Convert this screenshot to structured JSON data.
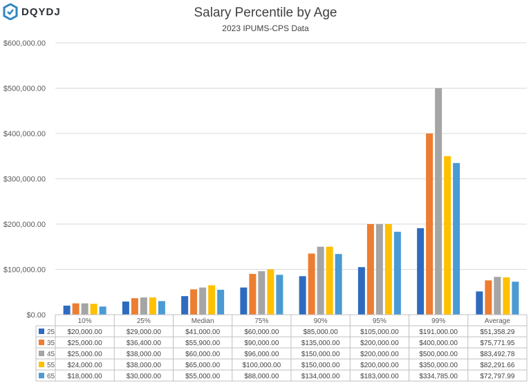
{
  "brand": {
    "logo_text": "DQYDJ",
    "logo_color": "#2e86c1"
  },
  "chart_data": {
    "type": "bar",
    "title": "Salary Percentile by Age",
    "subtitle": "2023 IPUMS-CPS Data",
    "xlabel": "",
    "ylabel": "",
    "ylim": [
      0,
      600000
    ],
    "yticks": [
      0,
      100000,
      200000,
      300000,
      400000,
      500000,
      600000
    ],
    "ytick_labels": [
      "$0.00",
      "$100,000.00",
      "$200,000.00",
      "$300,000.00",
      "$400,000.00",
      "$500,000.00",
      "$600,000.00"
    ],
    "grid": true,
    "legend": "data-table-below",
    "categories": [
      "10%",
      "25%",
      "Median",
      "75%",
      "90%",
      "95%",
      "99%",
      "Average"
    ],
    "series": [
      {
        "name": "25",
        "color": "#2e6bbf",
        "values": [
          20000,
          29000,
          41000,
          60000,
          85000,
          105000,
          191000,
          51358.29
        ],
        "labels": [
          "$20,000.00",
          "$29,000.00",
          "$41,000.00",
          "$60,000.00",
          "$85,000.00",
          "$105,000.00",
          "$191,000.00",
          "$51,358.29"
        ]
      },
      {
        "name": "35",
        "color": "#ed7d31",
        "values": [
          25000,
          36400,
          55900,
          90000,
          135000,
          200000,
          400000,
          75771.95
        ],
        "labels": [
          "$25,000.00",
          "$36,400.00",
          "$55,900.00",
          "$90,000.00",
          "$135,000.00",
          "$200,000.00",
          "$400,000.00",
          "$75,771.95"
        ]
      },
      {
        "name": "45",
        "color": "#a5a5a5",
        "values": [
          25000,
          38000,
          60000,
          96000,
          150000,
          200000,
          500000,
          83492.78
        ],
        "labels": [
          "$25,000.00",
          "$38,000.00",
          "$60,000.00",
          "$96,000.00",
          "$150,000.00",
          "$200,000.00",
          "$500,000.00",
          "$83,492.78"
        ]
      },
      {
        "name": "55",
        "color": "#ffc000",
        "values": [
          24000,
          38000,
          65000,
          100000,
          150000,
          200000,
          350000,
          82291.66
        ],
        "labels": [
          "$24,000.00",
          "$38,000.00",
          "$65,000.00",
          "$100,000.00",
          "$150,000.00",
          "$200,000.00",
          "$350,000.00",
          "$82,291.66"
        ]
      },
      {
        "name": "65",
        "color": "#4a9ad4",
        "values": [
          18000,
          30000,
          55000,
          88000,
          134000,
          183000,
          334785,
          72797.99
        ],
        "labels": [
          "$18,000.00",
          "$30,000.00",
          "$55,000.00",
          "$88,000.00",
          "$134,000.00",
          "$183,000.00",
          "$334,785.00",
          "$72,797.99"
        ]
      }
    ]
  }
}
